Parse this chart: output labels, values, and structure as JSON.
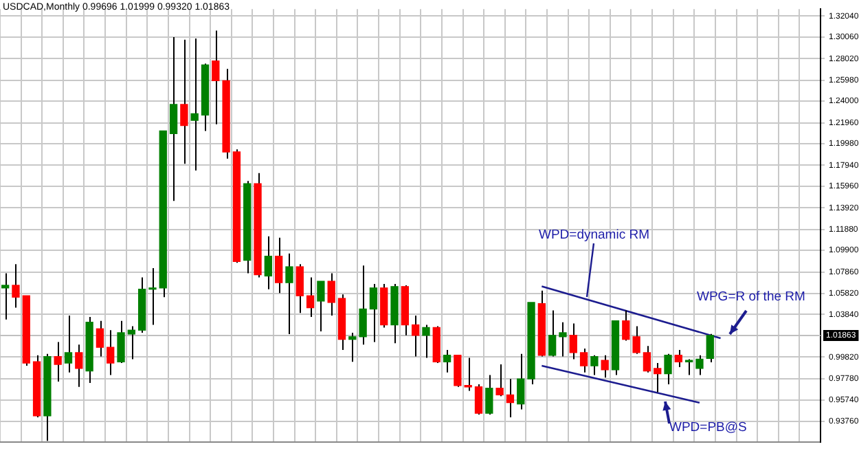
{
  "chart_data": {
    "type": "candlestick",
    "title": "USDCAD,Monthly 0.99696 1.01999 0.99320 1.01863",
    "categories": [
      null,
      null,
      null,
      null,
      null,
      null,
      null,
      null,
      null,
      null,
      null,
      null,
      null,
      null,
      null,
      null,
      null,
      null,
      null,
      null,
      null,
      null,
      null,
      null,
      null,
      null,
      null,
      null,
      null,
      null,
      null,
      null,
      null,
      null,
      null,
      null,
      null,
      null,
      null,
      null,
      null,
      null,
      null,
      null,
      null,
      null,
      null,
      null,
      null,
      null,
      null,
      null,
      null,
      null,
      null,
      null,
      null,
      null,
      null,
      null,
      null,
      null,
      null,
      null,
      null,
      null,
      null,
      null,
      null,
      null,
      null,
      null,
      null,
      null,
      null,
      null,
      null,
      null
    ],
    "ohlc": [
      [
        1.0635,
        1.0773,
        1.0336,
        1.066
      ],
      [
        1.066,
        1.086,
        1.0448,
        1.0548
      ],
      [
        1.0561,
        1.0561,
        0.99,
        0.9925
      ],
      [
        0.9937,
        0.9999,
        0.9413,
        0.9426
      ],
      [
        0.9426,
        1.0012,
        0.919,
        0.9987
      ],
      [
        0.9987,
        1.0124,
        0.975,
        0.9912
      ],
      [
        0.9925,
        1.0374,
        0.9837,
        1.0024
      ],
      [
        1.0024,
        1.0099,
        0.97,
        0.9875
      ],
      [
        0.985,
        1.0361,
        0.9738,
        1.0311
      ],
      [
        1.0249,
        1.0324,
        0.9987,
        1.0074
      ],
      [
        1.0074,
        1.0236,
        0.9812,
        0.9925
      ],
      [
        0.9937,
        1.0324,
        0.9925,
        1.0212
      ],
      [
        1.0199,
        1.0274,
        0.9962,
        1.0236
      ],
      [
        1.0236,
        1.0735,
        1.0212,
        1.0623
      ],
      [
        1.0623,
        1.0822,
        1.0286,
        1.0635
      ],
      [
        1.0635,
        1.2119,
        1.0548,
        1.2119
      ],
      [
        1.2094,
        1.3005,
        1.1458,
        1.2369
      ],
      [
        1.2369,
        1.298,
        1.1808,
        1.2169
      ],
      [
        1.2219,
        1.2992,
        1.1745,
        1.2281
      ],
      [
        1.2269,
        1.2755,
        1.2119,
        1.2743
      ],
      [
        1.278,
        1.3067,
        1.2182,
        1.2593
      ],
      [
        1.2593,
        1.2705,
        1.1857,
        1.192
      ],
      [
        1.192,
        1.1945,
        1.0872,
        1.0885
      ],
      [
        1.0897,
        1.1645,
        1.0773,
        1.162
      ],
      [
        1.162,
        1.172,
        1.0735,
        1.076
      ],
      [
        1.0748,
        1.1122,
        1.0623,
        1.0935
      ],
      [
        1.0935,
        1.1109,
        1.0586,
        1.0685
      ],
      [
        1.0685,
        1.096,
        1.0199,
        1.0835
      ],
      [
        1.0835,
        1.086,
        1.0399,
        1.0561
      ],
      [
        1.0561,
        1.0735,
        1.0361,
        1.0448
      ],
      [
        1.0511,
        1.0698,
        1.0224,
        1.0698
      ],
      [
        1.0698,
        1.0773,
        1.0374,
        1.0498
      ],
      [
        1.0536,
        1.0573,
        1.0049,
        1.0149
      ],
      [
        1.0149,
        1.0212,
        0.9937,
        1.0174
      ],
      [
        1.0174,
        1.0847,
        1.0099,
        1.0436
      ],
      [
        1.0436,
        1.0673,
        1.0124,
        1.0635
      ],
      [
        1.0635,
        1.0673,
        1.0261,
        1.0286
      ],
      [
        1.0286,
        1.0673,
        1.0112,
        1.0648
      ],
      [
        1.0648,
        1.066,
        1.0187,
        1.0286
      ],
      [
        1.0286,
        1.0374,
        0.9987,
        1.0187
      ],
      [
        1.0187,
        1.0286,
        0.9974,
        1.0261
      ],
      [
        1.0261,
        1.0274,
        0.9925,
        0.9937
      ],
      [
        0.9937,
        1.0049,
        0.9837,
        0.9999
      ],
      [
        0.9999,
        0.9999,
        0.97,
        0.9713
      ],
      [
        0.9713,
        0.9974,
        0.9663,
        0.97
      ],
      [
        0.97,
        0.9725,
        0.9438,
        0.9451
      ],
      [
        0.9451,
        0.9812,
        0.9438,
        0.9688
      ],
      [
        0.9688,
        0.9912,
        0.9613,
        0.9625
      ],
      [
        0.9625,
        0.9775,
        0.9413,
        0.9551
      ],
      [
        0.9538,
        1.0012,
        0.9488,
        0.9775
      ],
      [
        0.9775,
        1.0498,
        0.9725,
        1.0498
      ],
      [
        1.0486,
        1.061,
        0.9987,
        0.9999
      ],
      [
        0.9999,
        1.0423,
        0.9987,
        1.0187
      ],
      [
        1.0174,
        1.0311,
        0.9987,
        1.0212
      ],
      [
        1.0187,
        1.0299,
        0.9962,
        1.0024
      ],
      [
        1.0024,
        1.0062,
        0.9837,
        0.99
      ],
      [
        0.99,
        0.9999,
        0.9812,
        0.9987
      ],
      [
        0.995,
        0.9999,
        0.9788,
        0.9862
      ],
      [
        0.9862,
        1.0324,
        0.9812,
        1.0324
      ],
      [
        1.0324,
        1.0423,
        1.0137,
        1.0149
      ],
      [
        1.0174,
        1.0274,
        1.0012,
        1.0024
      ],
      [
        1.0024,
        1.0087,
        0.9837,
        0.985
      ],
      [
        0.9875,
        0.9925,
        0.965,
        0.9825
      ],
      [
        0.9825,
        1.0012,
        0.9725,
        0.9999
      ],
      [
        0.9999,
        1.0049,
        0.9887,
        0.9937
      ],
      [
        0.9937,
        0.9962,
        0.9812,
        0.995
      ],
      [
        0.9875,
        0.9999,
        0.9812,
        0.9962
      ],
      [
        0.99696,
        1.01999,
        0.9932,
        1.01863
      ],
      null,
      null,
      null,
      null,
      null,
      null,
      null,
      null,
      null,
      null
    ],
    "colors": [
      "#008000",
      "#ff0000",
      "#ff0000",
      "#ff0000",
      "#008000",
      "#ff0000",
      "#008000",
      "#ff0000",
      "#008000",
      "#ff0000",
      "#ff0000",
      "#008000",
      "#008000",
      "#008000",
      "#008000",
      "#008000",
      "#008000",
      "#ff0000",
      "#008000",
      "#008000",
      "#ff0000",
      "#ff0000",
      "#ff0000",
      "#008000",
      "#ff0000",
      "#008000",
      "#ff0000",
      "#008000",
      "#ff0000",
      "#ff0000",
      "#008000",
      "#ff0000",
      "#ff0000",
      "#008000",
      "#008000",
      "#008000",
      "#ff0000",
      "#008000",
      "#ff0000",
      "#ff0000",
      "#008000",
      "#ff0000",
      "#008000",
      "#ff0000",
      "#ff0000",
      "#ff0000",
      "#008000",
      "#ff0000",
      "#ff0000",
      "#008000",
      "#008000",
      "#ff0000",
      "#008000",
      "#008000",
      "#ff0000",
      "#ff0000",
      "#008000",
      "#ff0000",
      "#008000",
      "#ff0000",
      "#ff0000",
      "#ff0000",
      "#ff0000",
      "#008000",
      "#ff0000",
      "#008000",
      "#008000",
      "#008000",
      null,
      null,
      null,
      null,
      null,
      null,
      null,
      null,
      null,
      null
    ],
    "series": [
      {
        "type": "line",
        "color": "#1c1c8f",
        "values": [
          null,
          null,
          null,
          null,
          null,
          null,
          null,
          null,
          null,
          null,
          null,
          null,
          null,
          null,
          null,
          null,
          null,
          null,
          null,
          null,
          null,
          null,
          null,
          null,
          null,
          null,
          null,
          null,
          null,
          null,
          null,
          null,
          null,
          null,
          null,
          null,
          null,
          null,
          null,
          null,
          null,
          null,
          null,
          null,
          null,
          null,
          null,
          null,
          null,
          null,
          null,
          1.065,
          null,
          null,
          null,
          null,
          null,
          null,
          null,
          null,
          null,
          null,
          null,
          null,
          null,
          null,
          null,
          null,
          1.016,
          null,
          null,
          null,
          null,
          null,
          null,
          null,
          null,
          null
        ]
      },
      {
        "type": "line",
        "color": "#1c1c8f",
        "values": [
          null,
          null,
          null,
          null,
          null,
          null,
          null,
          null,
          null,
          null,
          null,
          null,
          null,
          null,
          null,
          null,
          null,
          null,
          null,
          null,
          null,
          null,
          null,
          null,
          null,
          null,
          null,
          null,
          null,
          null,
          null,
          null,
          null,
          null,
          null,
          null,
          null,
          null,
          null,
          null,
          null,
          null,
          null,
          null,
          null,
          null,
          null,
          null,
          null,
          null,
          null,
          0.99,
          null,
          null,
          null,
          null,
          null,
          null,
          null,
          null,
          null,
          null,
          null,
          null,
          null,
          null,
          0.955,
          null,
          null,
          null,
          null,
          null,
          null,
          null,
          null,
          null,
          null,
          null
        ]
      }
    ],
    "ylim": [
      0.918,
      1.327
    ],
    "yticks": [
      {
        "value": 1.3204,
        "label": "1.32040"
      },
      {
        "value": 1.3006,
        "label": "1.30060"
      },
      {
        "value": 1.2802,
        "label": "1.28020"
      },
      {
        "value": 1.2598,
        "label": "1.25980"
      },
      {
        "value": 1.24,
        "label": "1.24000"
      },
      {
        "value": 1.2196,
        "label": "1.21960"
      },
      {
        "value": 1.1998,
        "label": "1.19980"
      },
      {
        "value": 1.1794,
        "label": "1.17940"
      },
      {
        "value": 1.1596,
        "label": "1.15960"
      },
      {
        "value": 1.1392,
        "label": "1.13920"
      },
      {
        "value": 1.1188,
        "label": "1.11880"
      },
      {
        "value": 1.099,
        "label": "1.09900"
      },
      {
        "value": 1.0786,
        "label": "1.07860"
      },
      {
        "value": 1.0582,
        "label": "1.05820"
      },
      {
        "value": 1.0384,
        "label": "1.03840"
      },
      {
        "value": 0.9982,
        "label": "0.99820"
      },
      {
        "value": 0.9778,
        "label": "0.97780"
      },
      {
        "value": 0.9574,
        "label": "0.95740"
      },
      {
        "value": 0.9376,
        "label": "0.93760"
      }
    ],
    "ref_lines": [
      {
        "axis": "y",
        "value": 1.01863,
        "label": "1.01863",
        "color": "#c0c0c0"
      }
    ],
    "annotations": [
      "WPD=dynamic RM",
      "WPG=R of the RM",
      "WPD=PB@S"
    ],
    "grid": true,
    "tick_labels": "y"
  }
}
